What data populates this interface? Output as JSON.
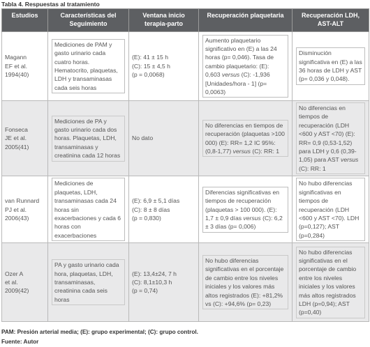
{
  "caption": "Tabla 4. Respuestas al tratamiento",
  "headers": [
    "Estudios",
    "Características del Seguimiento",
    "Ventana inicio terapia-parto",
    "Recuperación plaquetaria",
    "Recuperación LDH, AST-ALT"
  ],
  "rows": [
    {
      "study": "Magann\nEF et al.\n1994(40)",
      "follow": "Mediciones de PAM y gasto urinario cada cuatro horas. Hematocrito, plaquetas, LDH y transaminasas cada seis horas",
      "window": "(E): 41 ± 15 h\n(C): 15 ± 4,5 h\n(p = 0,0068)",
      "platelet_a": "Aumento plaquetario significativo en (E) a las 24 horas (p= 0,046). Tasa de cambio plaquetario: (E): 0,603 ",
      "platelet_versus": "versus",
      "platelet_b": " (C): -1,936 [Unidades/hora - 1] (p= 0,0063)",
      "ldh_a": "Disminución significativa en (E) a las 36 horas de LDH y AST (p= 0,036 y 0,048).",
      "ldh_versus": "",
      "ldh_b": ""
    },
    {
      "study": "Fonseca\nJE et al.\n2005(41)",
      "follow": "Mediciones de PA y gasto urinario cada dos horas. Plaquetas, LDH, transaminasas y creatinina cada 12 horas",
      "window": "No dato",
      "platelet_a": "No diferencias en tiempos de recuperación (plaquetas >100 000) (E): RR= 1,2 IC 95%: (0,8-1,77) ",
      "platelet_versus": "versus",
      "platelet_b": " (C): RR: 1",
      "ldh_a": "No diferencias en tiempos de recuperación (LDH <600 y AST <70) (E): RR= 0,9 (0,53-1,52) para LDH y 0,6 (0,39-1,05) para AST ",
      "ldh_versus": "versus",
      "ldh_b": " (C): RR: 1"
    },
    {
      "study": "van Runnard\nPJ et al.\n2006(43)",
      "follow": "Mediciones de plaquetas, LDH, transaminasas cada 24 horas sin exacerbaciones y cada 6 horas con exacerbaciones",
      "window": "(E): 6,9 ± 5,1 días\n(C): 8 ± 8 días\n(p = 0,830)",
      "platelet_a": "Diferencias significativas en tiempos de recuperación (plaquetas > 100 000). (E): 1,7 ± 0,9 días ",
      "platelet_versus": "versus",
      "platelet_b": " (C): 6,2 ± 3 días (p= 0,006)",
      "ldh_a": "No hubo diferencias significativas en tiempos de recuperación (LDH <600 y AST <70). LDH (p=0,127); AST (p=0,284)",
      "ldh_versus": "",
      "ldh_b": ""
    },
    {
      "study": "Ozer A\net al.\n2009(42)",
      "follow": "PA y gasto urinario cada hora, plaquetas, LDH, transaminasas, creatinina cada seis horas",
      "window": "(E): 13,4±24, 7 h\n(C): 8,1±10,3 h\n(p = 0,74)",
      "platelet_a": "No hubo diferencias significativas en el porcentaje de cambio entre los niveles iniciales y los valores más altos registrados (E): +81,2% vs (C): +94,6% (p= 0,23)",
      "platelet_versus": "",
      "platelet_b": "",
      "ldh_a": "No hubo diferencias significativas en el porcentaje de cambio entre los niveles iniciales y los valores más altos registrados LDH (p=0,94); AST (p=0,40)",
      "ldh_versus": "",
      "ldh_b": ""
    }
  ],
  "footnote": "PAM: Presión arterial media; (E): grupo experimental; (C): grupo control.",
  "source": "Fuente: Autor"
}
